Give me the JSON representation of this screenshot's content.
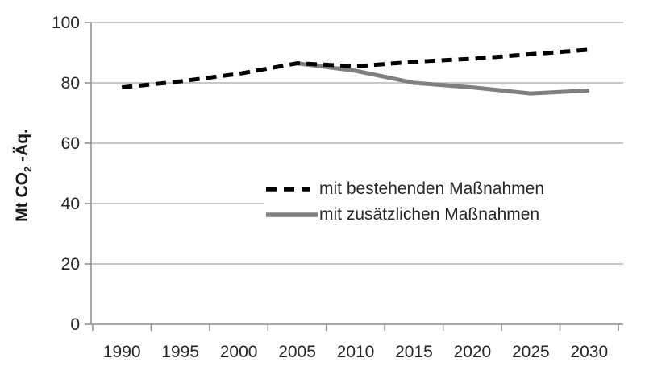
{
  "chart_data": {
    "type": "line",
    "title": "",
    "ylabel": "Mt CO2 -Äq.",
    "ylabel_parts": {
      "prefix": "Mt CO",
      "sub": "2",
      "suffix": " -Äq."
    },
    "categories": [
      "1990",
      "1995",
      "2000",
      "2005",
      "2010",
      "2015",
      "2020",
      "2025",
      "2030"
    ],
    "y_ticks": [
      0,
      20,
      40,
      60,
      80,
      100
    ],
    "ylim": [
      0,
      100
    ],
    "grid": true,
    "legend_position": "inside-center-right",
    "colors": {
      "grid": "#a6a6a6",
      "axis": "#8c8c8c"
    },
    "series": [
      {
        "name": "mit bestehenden Maßnahmen",
        "style": "dashed",
        "color": "#000000",
        "values": [
          78.5,
          80.5,
          83,
          86.5,
          85.5,
          87,
          88,
          89.5,
          91
        ]
      },
      {
        "name": "mit zusätzlichen Maßnahmen",
        "style": "solid",
        "color": "#808080",
        "values": [
          null,
          null,
          null,
          86.5,
          84,
          80,
          78.5,
          76.5,
          77.5
        ]
      }
    ]
  }
}
